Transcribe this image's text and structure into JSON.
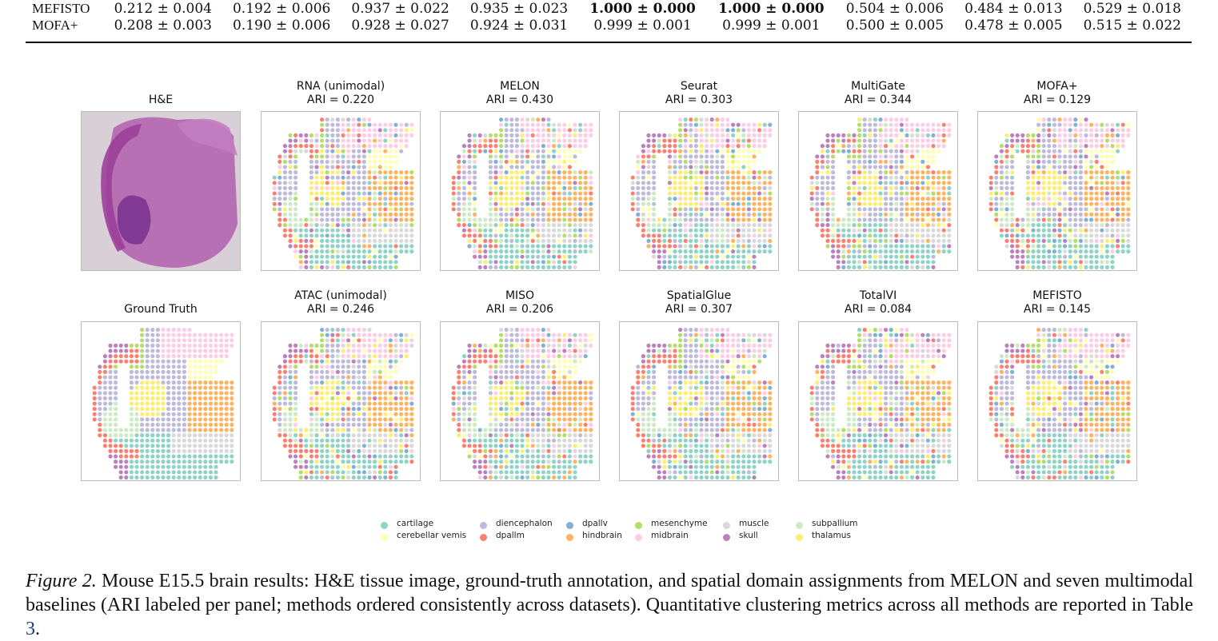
{
  "table": {
    "rows": [
      {
        "method": "MEFISTO",
        "values": [
          "0.212 ± 0.004",
          "0.192 ± 0.006",
          "0.937 ± 0.022",
          "0.935 ± 0.023",
          "1.000 ± 0.000",
          "1.000 ± 0.000",
          "0.504 ± 0.006",
          "0.484 ± 0.013",
          "0.529 ± 0.018"
        ],
        "bold": [
          4,
          5
        ]
      },
      {
        "method": "MOFA+",
        "values": [
          "0.208 ± 0.003",
          "0.190 ± 0.006",
          "0.928 ± 0.027",
          "0.924 ± 0.031",
          "0.999 ± 0.001",
          "0.999 ± 0.001",
          "0.500 ± 0.005",
          "0.478 ± 0.005",
          "0.515 ± 0.022"
        ],
        "bold": []
      }
    ]
  },
  "figure": {
    "panels_row1": [
      {
        "title": "H&E",
        "ari": "",
        "kind": "he"
      },
      {
        "title": "RNA (unimodal)",
        "ari": "ARI = 0.220",
        "kind": "map",
        "seed": 11
      },
      {
        "title": "MELON",
        "ari": "ARI = 0.430",
        "kind": "map",
        "seed": 23
      },
      {
        "title": "Seurat",
        "ari": "ARI = 0.303",
        "kind": "map",
        "seed": 37
      },
      {
        "title": "MultiGate",
        "ari": "ARI = 0.344",
        "kind": "map",
        "seed": 41
      },
      {
        "title": "MOFA+",
        "ari": "ARI = 0.129",
        "kind": "map",
        "seed": 53
      }
    ],
    "panels_row2": [
      {
        "title": "Ground Truth",
        "ari": "",
        "kind": "gt"
      },
      {
        "title": "ATAC (unimodal)",
        "ari": "ARI = 0.246",
        "kind": "map",
        "seed": 67
      },
      {
        "title": "MISO",
        "ari": "ARI = 0.206",
        "kind": "map",
        "seed": 71
      },
      {
        "title": "SpatialGlue",
        "ari": "ARI = 0.307",
        "kind": "map",
        "seed": 83
      },
      {
        "title": "TotalVI",
        "ari": "ARI = 0.084",
        "kind": "map",
        "seed": 97
      },
      {
        "title": "MEFISTO",
        "ari": "ARI = 0.145",
        "kind": "map",
        "seed": 101
      }
    ],
    "legend": [
      {
        "label": "cartilage",
        "color": "#8fd3c7"
      },
      {
        "label": "cerebellar vemis",
        "color": "#ffffb3"
      },
      {
        "label": "diencephalon",
        "color": "#bebada"
      },
      {
        "label": "dpallm",
        "color": "#fb8072"
      },
      {
        "label": "dpallv",
        "color": "#80b1d3"
      },
      {
        "label": "hindbrain",
        "color": "#fdb462"
      },
      {
        "label": "mesenchyme",
        "color": "#b3de69"
      },
      {
        "label": "midbrain",
        "color": "#fccde5"
      },
      {
        "label": "muscle",
        "color": "#d9d9d9"
      },
      {
        "label": "skull",
        "color": "#bc80bd"
      },
      {
        "label": "subpallium",
        "color": "#ccebc5"
      },
      {
        "label": "thalamus",
        "color": "#ffed6f"
      }
    ]
  },
  "caption": {
    "label": "Figure 2.",
    "text": " Mouse E15.5 brain results: H&E tissue image, ground-truth annotation, and spatial domain assignments from MELON and seven multimodal baselines (ARI labeled per panel; methods ordered consistently across datasets). Quantitative clustering metrics across all methods are reported in Table ",
    "ref": "3",
    "end": "."
  }
}
